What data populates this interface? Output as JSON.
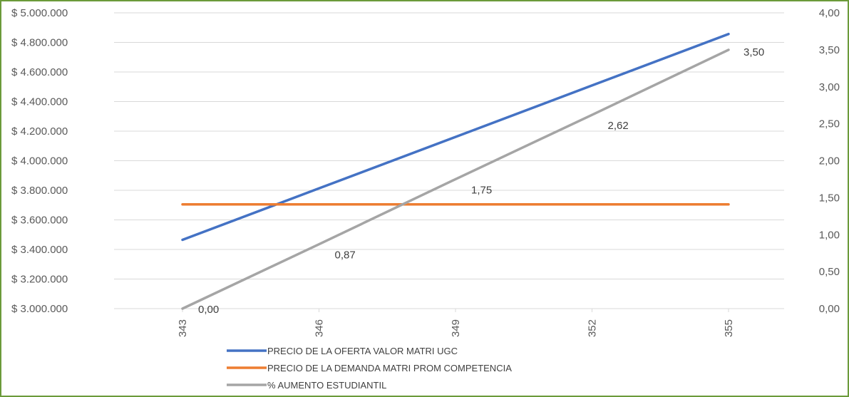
{
  "chart_data": {
    "type": "line",
    "title": "",
    "xlabel": "",
    "ylabel": "",
    "x": [
      343,
      346,
      349,
      352,
      355
    ],
    "y_left": {
      "min": 3000000,
      "max": 5000000,
      "step": 200000,
      "ticks": [
        "$ 3.000.000",
        "$ 3.200.000",
        "$ 3.400.000",
        "$ 3.600.000",
        "$ 3.800.000",
        "$ 4.000.000",
        "$ 4.200.000",
        "$ 4.400.000",
        "$ 4.600.000",
        "$ 4.800.000",
        "$ 5.000.000"
      ]
    },
    "y_right": {
      "min": 0,
      "max": 4,
      "step": 0.5,
      "ticks": [
        "0,00",
        "0,50",
        "1,00",
        "1,50",
        "2,00",
        "2,50",
        "3,00",
        "3,50",
        "4,00"
      ]
    },
    "grid": true,
    "legend_position": "bottom-left",
    "series": [
      {
        "name": "PRECIO DE LA OFERTA VALOR MATRI UGC",
        "axis": "left",
        "color": "#4472c4",
        "values": [
          3465000,
          3813000,
          4161000,
          4509000,
          4857000
        ]
      },
      {
        "name": "PRECIO DE LA DEMANDA MATRI PROM COMPETENCIA",
        "axis": "left",
        "color": "#ed7d31",
        "values": [
          3705000,
          3705000,
          3705000,
          3705000,
          3705000
        ]
      },
      {
        "name": "% AUMENTO ESTUDIANTIL",
        "axis": "right",
        "color": "#a5a5a5",
        "values": [
          0.0,
          0.87,
          1.75,
          2.62,
          3.5
        ],
        "data_labels": [
          "0,00",
          "0,87",
          "1,75",
          "2,62",
          "3,50"
        ]
      }
    ]
  }
}
